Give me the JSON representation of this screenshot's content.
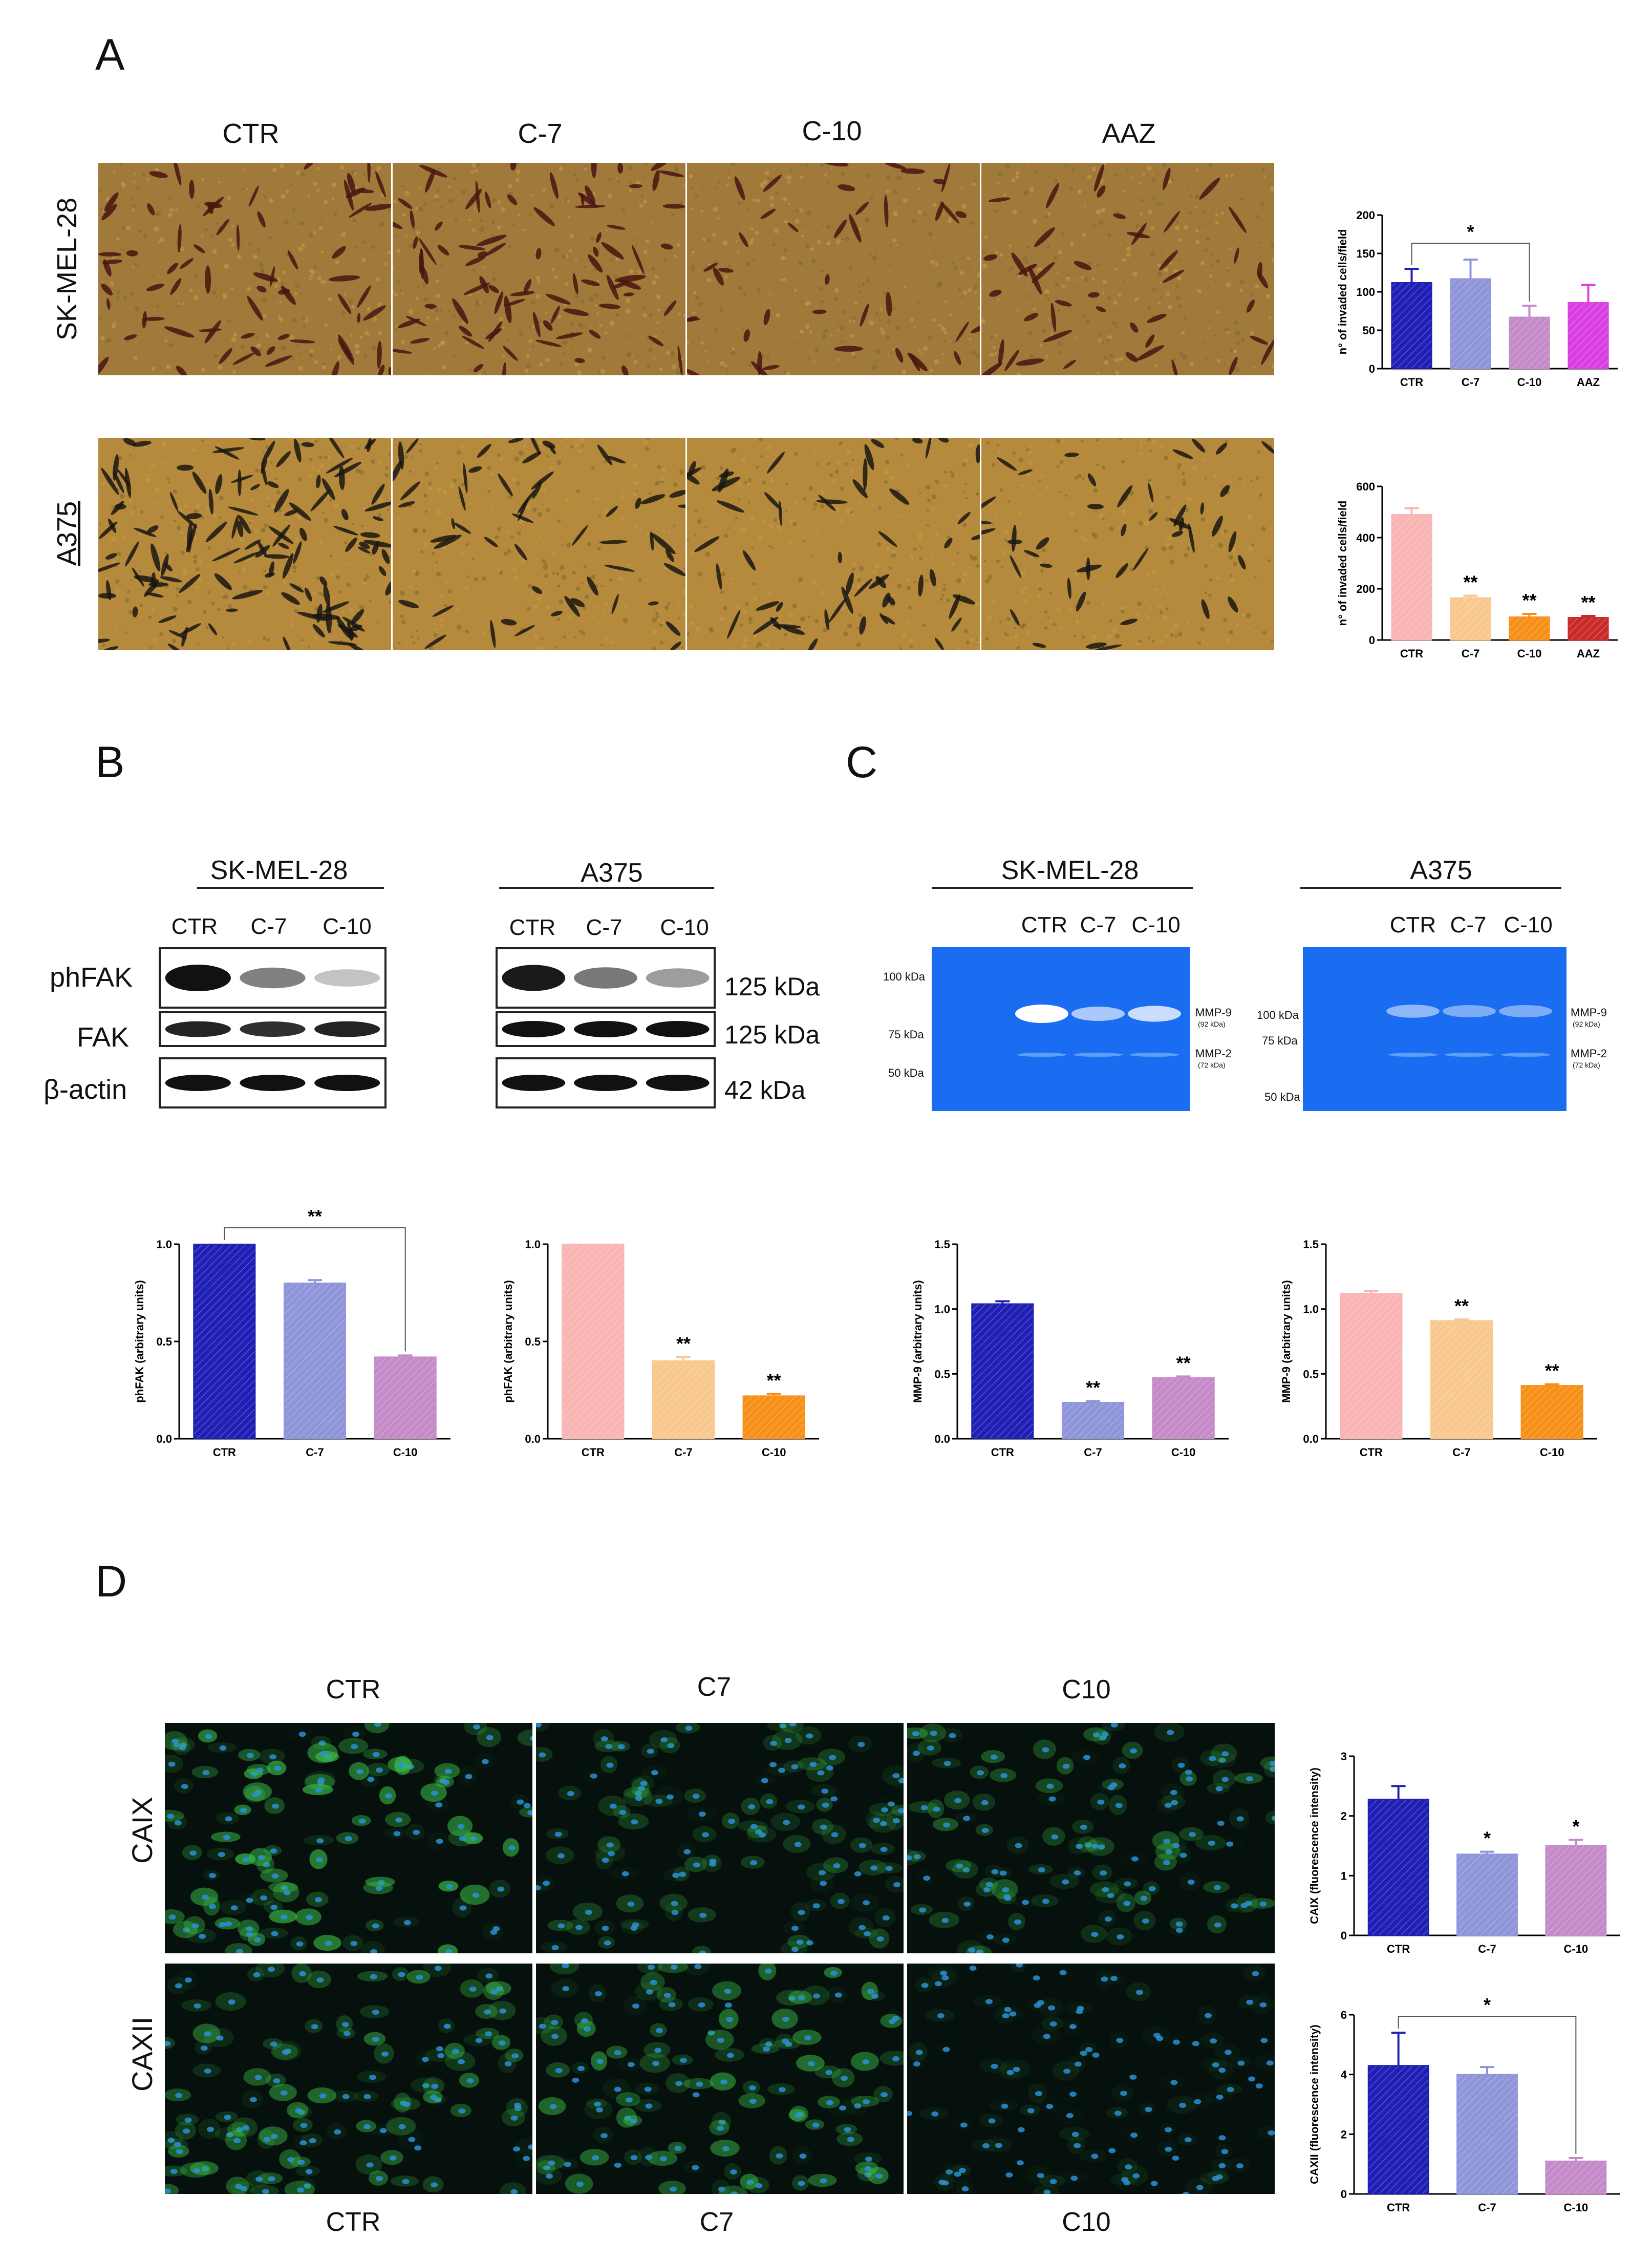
{
  "panels": {
    "a": "A",
    "b": "B",
    "c": "C",
    "d": "D"
  },
  "panel_a": {
    "columns": [
      "CTR",
      "C-7",
      "C-10",
      "AAZ"
    ],
    "rows": [
      "SK-MEL-28",
      "A375"
    ]
  },
  "panel_b": {
    "sk_title": "SK-MEL-28",
    "a375_title": "A375",
    "lanes": [
      "CTR",
      "C-7",
      "C-10"
    ],
    "row_labels": [
      "phFAK",
      "FAK",
      "β-actin"
    ],
    "kda": [
      "125 kDa",
      "125 kDa",
      "42 kDa"
    ]
  },
  "panel_c": {
    "sk_title": "SK-MEL-28",
    "a375_title": "A375",
    "lanes": [
      "CTR",
      "C-7",
      "C-10"
    ],
    "sk_markers": [
      "100 kDa",
      "75 kDa",
      "50 kDa"
    ],
    "a375_markers": [
      "100 kDa",
      "75 kDa",
      "50 kDa"
    ],
    "mmp9": "MMP-9",
    "mmp9_sub": "(92 kDa)",
    "mmp2": "MMP-2",
    "mmp2_sub": "(72 kDa)"
  },
  "panel_d": {
    "columns_top": [
      "CTR",
      "C7",
      "C10"
    ],
    "columns_bottom": [
      "CTR",
      "C7",
      "C10"
    ],
    "rows": [
      "CAIX",
      "CAXII"
    ]
  },
  "colors": {
    "ctr_dark": "#1f1fb5",
    "c7_light_blue": "#8f95d9",
    "c10_mauve": "#c48bc8",
    "aaz_magenta": "#d93fe0",
    "ctr_pink": "#f9b4b4",
    "c7_peach": "#f9c88e",
    "c10_orange": "#f79018",
    "aaz_red": "#c92a2a"
  },
  "chart_data": [
    {
      "id": "a_sk",
      "type": "bar",
      "categories": [
        "CTR",
        "C-7",
        "C-10",
        "AAZ"
      ],
      "values": [
        112,
        117,
        67,
        86
      ],
      "errors": [
        18,
        25,
        15,
        23
      ],
      "colors": [
        "#1f1fb5",
        "#8f95d9",
        "#c48bc8",
        "#d93fe0"
      ],
      "ylabel": "n° of invaded cells/field",
      "ylim": [
        0,
        200
      ],
      "yticks": [
        0,
        50,
        100,
        150,
        200
      ],
      "annotations": [
        {
          "text": "*",
          "from": 0,
          "to": 2
        }
      ],
      "stars": [
        "",
        "",
        "",
        ""
      ]
    },
    {
      "id": "a_a375",
      "type": "bar",
      "categories": [
        "CTR",
        "C-7",
        "C-10",
        "AAZ"
      ],
      "values": [
        490,
        165,
        90,
        88
      ],
      "errors": [
        25,
        8,
        12,
        6
      ],
      "colors": [
        "#f9b4b4",
        "#f9c88e",
        "#f79018",
        "#c92a2a"
      ],
      "ylabel": "n° of invaded cells/field",
      "ylim": [
        0,
        600
      ],
      "yticks": [
        0,
        200,
        400,
        600
      ],
      "annotations": [],
      "stars": [
        "",
        "**",
        "**",
        "**"
      ]
    },
    {
      "id": "b_sk",
      "type": "bar",
      "categories": [
        "CTR",
        "C-7",
        "C-10"
      ],
      "values": [
        1.0,
        0.8,
        0.42
      ],
      "errors": [
        0,
        0.015,
        0.008
      ],
      "colors": [
        "#1f1fb5",
        "#8f95d9",
        "#c48bc8"
      ],
      "ylabel": "phFAK (arbitrary units)",
      "ylim": [
        0,
        1.0
      ],
      "yticks": [
        0.0,
        0.5,
        1.0
      ],
      "annotations": [
        {
          "text": "**",
          "from": 0,
          "to": 2
        }
      ],
      "stars": [
        "",
        "",
        ""
      ]
    },
    {
      "id": "b_a375",
      "type": "bar",
      "categories": [
        "CTR",
        "C-7",
        "C-10"
      ],
      "values": [
        1.0,
        0.4,
        0.22
      ],
      "errors": [
        0,
        0.02,
        0.01
      ],
      "colors": [
        "#f9b4b4",
        "#f9c88e",
        "#f79018"
      ],
      "ylabel": "phFAK (arbitrary units)",
      "ylim": [
        0,
        1.0
      ],
      "yticks": [
        0.0,
        0.5,
        1.0
      ],
      "annotations": [],
      "stars": [
        "",
        "**",
        "**"
      ]
    },
    {
      "id": "c_sk",
      "type": "bar",
      "categories": [
        "CTR",
        "C-7",
        "C-10"
      ],
      "values": [
        1.04,
        0.28,
        0.47
      ],
      "errors": [
        0.02,
        0.01,
        0.01
      ],
      "colors": [
        "#1f1fb5",
        "#8f95d9",
        "#c48bc8"
      ],
      "ylabel": "MMP-9 (arbitrary units)",
      "ylim": [
        0,
        1.5
      ],
      "yticks": [
        0.0,
        0.5,
        1.0,
        1.5
      ],
      "annotations": [],
      "stars": [
        "",
        "**",
        "**"
      ]
    },
    {
      "id": "c_a375",
      "type": "bar",
      "categories": [
        "CTR",
        "C-7",
        "C-10"
      ],
      "values": [
        1.12,
        0.91,
        0.41
      ],
      "errors": [
        0.02,
        0.01,
        0.01
      ],
      "colors": [
        "#f9b4b4",
        "#f9c88e",
        "#f79018"
      ],
      "ylabel": "MMP-9 (arbitrary units)",
      "ylim": [
        0,
        1.5
      ],
      "yticks": [
        0.0,
        0.5,
        1.0,
        1.5
      ],
      "annotations": [],
      "stars": [
        "",
        "**",
        "**"
      ]
    },
    {
      "id": "d_caix",
      "type": "bar",
      "categories": [
        "CTR",
        "C-7",
        "C-10"
      ],
      "values": [
        2.28,
        1.36,
        1.5
      ],
      "errors": [
        0.22,
        0.04,
        0.1
      ],
      "colors": [
        "#1f1fb5",
        "#8f95d9",
        "#c48bc8"
      ],
      "ylabel": "CAIX (fluorescence intensity)",
      "ylim": [
        0,
        3
      ],
      "yticks": [
        0,
        1,
        2,
        3
      ],
      "annotations": [],
      "stars": [
        "",
        "*",
        "*"
      ]
    },
    {
      "id": "d_caxii",
      "type": "bar",
      "categories": [
        "CTR",
        "C-7",
        "C-10"
      ],
      "values": [
        4.3,
        4.0,
        1.1
      ],
      "errors": [
        1.1,
        0.25,
        0.1
      ],
      "colors": [
        "#1f1fb5",
        "#8f95d9",
        "#c48bc8"
      ],
      "ylabel": "CAXII (fluorescence intensity)",
      "ylim": [
        0,
        6
      ],
      "yticks": [
        0,
        2,
        4,
        6
      ],
      "annotations": [
        {
          "text": "*",
          "from": 0,
          "to": 2
        }
      ],
      "stars": [
        "",
        "",
        ""
      ]
    }
  ]
}
